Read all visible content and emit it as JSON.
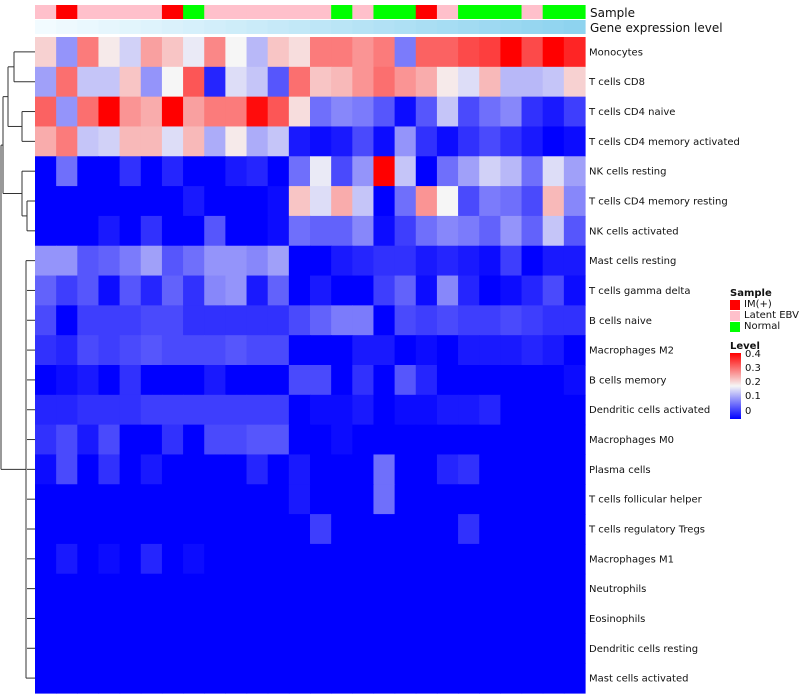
{
  "chart_data": {
    "type": "heatmap",
    "annotation_labels": [
      "Sample",
      "Gene expression level"
    ],
    "sample_groups": [
      "Latent EBV",
      "IM(+)",
      "Latent EBV",
      "Latent EBV",
      "Latent EBV",
      "Latent EBV",
      "IM(+)",
      "Normal",
      "Latent EBV",
      "Latent EBV",
      "Latent EBV",
      "Latent EBV",
      "Latent EBV",
      "Latent EBV",
      "Normal",
      "Latent EBV",
      "Normal",
      "Normal",
      "IM(+)",
      "Latent EBV",
      "Normal",
      "Normal",
      "Normal",
      "Latent EBV",
      "Normal",
      "Normal"
    ],
    "gene_expression_gradient": [
      "#f2fbff",
      "#8ed3ef"
    ],
    "rows": [
      "Monocytes",
      "T cells CD8",
      "T cells CD4 naive",
      "T cells CD4 memory activated",
      "NK cells resting",
      "T cells CD4 memory resting",
      "NK cells activated",
      "Mast cells resting",
      "T cells gamma delta",
      "B cells naive",
      "Macrophages M2",
      "B cells memory",
      "Dendritic cells activated",
      "Macrophages M0",
      "Plasma cells",
      "T cells follicular helper",
      "T cells regulatory  Tregs",
      "Macrophages M1",
      "Neutrophils",
      "Eosinophils",
      "Dendritic cells resting",
      "Mast cells activated"
    ],
    "values": [
      [
        0.23,
        0.12,
        0.3,
        0.21,
        0.17,
        0.27,
        0.24,
        0.19,
        0.29,
        0.2,
        0.15,
        0.24,
        0.22,
        0.3,
        0.3,
        0.28,
        0.3,
        0.1,
        0.32,
        0.32,
        0.34,
        0.35,
        0.4,
        0.34,
        0.4,
        0.37
      ],
      [
        0.13,
        0.31,
        0.16,
        0.16,
        0.24,
        0.12,
        0.2,
        0.33,
        0.03,
        0.18,
        0.16,
        0.07,
        0.31,
        0.24,
        0.25,
        0.28,
        0.31,
        0.28,
        0.26,
        0.21,
        0.18,
        0.25,
        0.15,
        0.15,
        0.16,
        0.23
      ],
      [
        0.32,
        0.12,
        0.31,
        0.4,
        0.28,
        0.26,
        0.4,
        0.27,
        0.3,
        0.3,
        0.39,
        0.33,
        0.22,
        0.09,
        0.11,
        0.1,
        0.07,
        0.01,
        0.07,
        0.16,
        0.06,
        0.09,
        0.11,
        0.04,
        0.02,
        0.05
      ],
      [
        0.26,
        0.3,
        0.16,
        0.17,
        0.25,
        0.25,
        0.18,
        0.25,
        0.14,
        0.21,
        0.14,
        0.16,
        0.02,
        0.01,
        0.02,
        0.06,
        0.01,
        0.12,
        0.04,
        0.01,
        0.04,
        0.06,
        0.04,
        0.02,
        0.0,
        0.01
      ],
      [
        0.0,
        0.09,
        0.0,
        0.0,
        0.04,
        0.0,
        0.03,
        0.0,
        0.0,
        0.02,
        0.03,
        0.0,
        0.09,
        0.19,
        0.06,
        0.12,
        0.4,
        0.16,
        0.0,
        0.09,
        0.13,
        0.17,
        0.15,
        0.09,
        0.18,
        0.13
      ],
      [
        0.0,
        0.0,
        0.0,
        0.0,
        0.0,
        0.0,
        0.0,
        0.02,
        0.0,
        0.0,
        0.0,
        0.01,
        0.24,
        0.18,
        0.26,
        0.16,
        0.0,
        0.09,
        0.28,
        0.2,
        0.06,
        0.1,
        0.09,
        0.06,
        0.25,
        0.11
      ],
      [
        0.0,
        0.0,
        0.0,
        0.02,
        0.0,
        0.04,
        0.0,
        0.0,
        0.07,
        0.0,
        0.0,
        0.01,
        0.09,
        0.08,
        0.08,
        0.11,
        0.01,
        0.05,
        0.09,
        0.11,
        0.1,
        0.08,
        0.12,
        0.08,
        0.16,
        0.07
      ],
      [
        0.12,
        0.12,
        0.07,
        0.08,
        0.1,
        0.13,
        0.07,
        0.09,
        0.12,
        0.12,
        0.11,
        0.13,
        0.0,
        0.0,
        0.02,
        0.03,
        0.04,
        0.04,
        0.02,
        0.03,
        0.02,
        0.01,
        0.05,
        0.0,
        0.02,
        0.02
      ],
      [
        0.08,
        0.05,
        0.07,
        0.01,
        0.07,
        0.03,
        0.08,
        0.04,
        0.11,
        0.12,
        0.02,
        0.08,
        0.0,
        0.02,
        0.0,
        0.0,
        0.05,
        0.08,
        0.01,
        0.11,
        0.03,
        0.0,
        0.01,
        0.03,
        0.06,
        0.01
      ],
      [
        0.06,
        0.0,
        0.05,
        0.05,
        0.05,
        0.06,
        0.06,
        0.04,
        0.04,
        0.04,
        0.04,
        0.04,
        0.06,
        0.08,
        0.1,
        0.1,
        0.0,
        0.06,
        0.05,
        0.06,
        0.05,
        0.05,
        0.06,
        0.05,
        0.04,
        0.04
      ],
      [
        0.04,
        0.03,
        0.06,
        0.05,
        0.06,
        0.07,
        0.06,
        0.06,
        0.06,
        0.07,
        0.06,
        0.06,
        0.0,
        0.0,
        0.0,
        0.02,
        0.02,
        0.0,
        0.01,
        0.0,
        0.02,
        0.02,
        0.02,
        0.03,
        0.02,
        0.0
      ],
      [
        0.0,
        0.01,
        0.02,
        0.0,
        0.04,
        0.0,
        0.0,
        0.0,
        0.02,
        0.0,
        0.0,
        0.0,
        0.06,
        0.06,
        0.0,
        0.04,
        0.0,
        0.07,
        0.03,
        0.0,
        0.0,
        0.0,
        0.0,
        0.0,
        0.0,
        0.01
      ],
      [
        0.03,
        0.03,
        0.04,
        0.04,
        0.04,
        0.05,
        0.05,
        0.05,
        0.05,
        0.05,
        0.05,
        0.05,
        0.0,
        0.01,
        0.01,
        0.02,
        0.0,
        0.01,
        0.01,
        0.02,
        0.02,
        0.03,
        0.0,
        0.0,
        0.0,
        0.0
      ],
      [
        0.04,
        0.06,
        0.02,
        0.06,
        0.0,
        0.0,
        0.04,
        0.0,
        0.06,
        0.06,
        0.07,
        0.07,
        0.0,
        0.0,
        0.01,
        0.0,
        0.0,
        0.0,
        0.0,
        0.0,
        0.0,
        0.0,
        0.0,
        0.0,
        0.0,
        0.0
      ],
      [
        0.01,
        0.06,
        0.0,
        0.04,
        0.0,
        0.02,
        0.0,
        0.0,
        0.0,
        0.0,
        0.03,
        0.0,
        0.02,
        0.0,
        0.0,
        0.0,
        0.09,
        0.0,
        0.0,
        0.03,
        0.04,
        0.0,
        0.0,
        0.0,
        0.0,
        0.0
      ],
      [
        0.0,
        0.0,
        0.0,
        0.0,
        0.0,
        0.0,
        0.0,
        0.0,
        0.0,
        0.0,
        0.0,
        0.0,
        0.02,
        0.0,
        0.0,
        0.0,
        0.09,
        0.0,
        0.0,
        0.0,
        0.0,
        0.0,
        0.0,
        0.0,
        0.0,
        0.0
      ],
      [
        0.0,
        0.0,
        0.0,
        0.0,
        0.0,
        0.0,
        0.0,
        0.0,
        0.0,
        0.0,
        0.0,
        0.0,
        0.0,
        0.05,
        0.0,
        0.0,
        0.0,
        0.0,
        0.0,
        0.0,
        0.04,
        0.0,
        0.0,
        0.0,
        0.0,
        0.0
      ],
      [
        0.0,
        0.02,
        0.0,
        0.01,
        0.0,
        0.03,
        0.0,
        0.01,
        0.0,
        0.0,
        0.0,
        0.0,
        0.0,
        0.0,
        0.0,
        0.0,
        0.0,
        0.0,
        0.0,
        0.0,
        0.0,
        0.0,
        0.0,
        0.0,
        0.0,
        0.0
      ],
      [
        0.0,
        0.0,
        0.0,
        0.0,
        0.0,
        0.0,
        0.0,
        0.0,
        0.0,
        0.0,
        0.0,
        0.0,
        0.0,
        0.0,
        0.0,
        0.0,
        0.0,
        0.0,
        0.0,
        0.0,
        0.0,
        0.0,
        0.0,
        0.0,
        0.0,
        0.0
      ],
      [
        0.0,
        0.0,
        0.0,
        0.0,
        0.0,
        0.0,
        0.0,
        0.0,
        0.0,
        0.0,
        0.0,
        0.0,
        0.0,
        0.0,
        0.0,
        0.0,
        0.0,
        0.0,
        0.0,
        0.0,
        0.0,
        0.0,
        0.0,
        0.0,
        0.0,
        0.0
      ],
      [
        0.0,
        0.0,
        0.0,
        0.0,
        0.0,
        0.0,
        0.0,
        0.0,
        0.0,
        0.0,
        0.0,
        0.0,
        0.0,
        0.0,
        0.0,
        0.0,
        0.0,
        0.0,
        0.0,
        0.0,
        0.0,
        0.0,
        0.0,
        0.0,
        0.0,
        0.0
      ],
      [
        0.0,
        0.0,
        0.0,
        0.0,
        0.0,
        0.0,
        0.0,
        0.0,
        0.0,
        0.0,
        0.0,
        0.0,
        0.0,
        0.0,
        0.0,
        0.0,
        0.0,
        0.0,
        0.0,
        0.0,
        0.0,
        0.0,
        0.0,
        0.0,
        0.0,
        0.0
      ]
    ],
    "color_scale": {
      "min": 0,
      "mid": 0.2,
      "max": 0.4,
      "low": "#0000ff",
      "mid_color": "#f6f6f6",
      "high": "#ff0000"
    }
  },
  "legend": {
    "sample_title": "Sample",
    "sample_items": [
      {
        "label": "IM(+)",
        "color": "#ff0000"
      },
      {
        "label": "Latent EBV",
        "color": "#ffc0cb"
      },
      {
        "label": "Normal",
        "color": "#00ff00"
      }
    ],
    "level_title": "Level",
    "level_ticks": [
      "0.4",
      "0.3",
      "0.2",
      "0.1",
      "0"
    ]
  }
}
